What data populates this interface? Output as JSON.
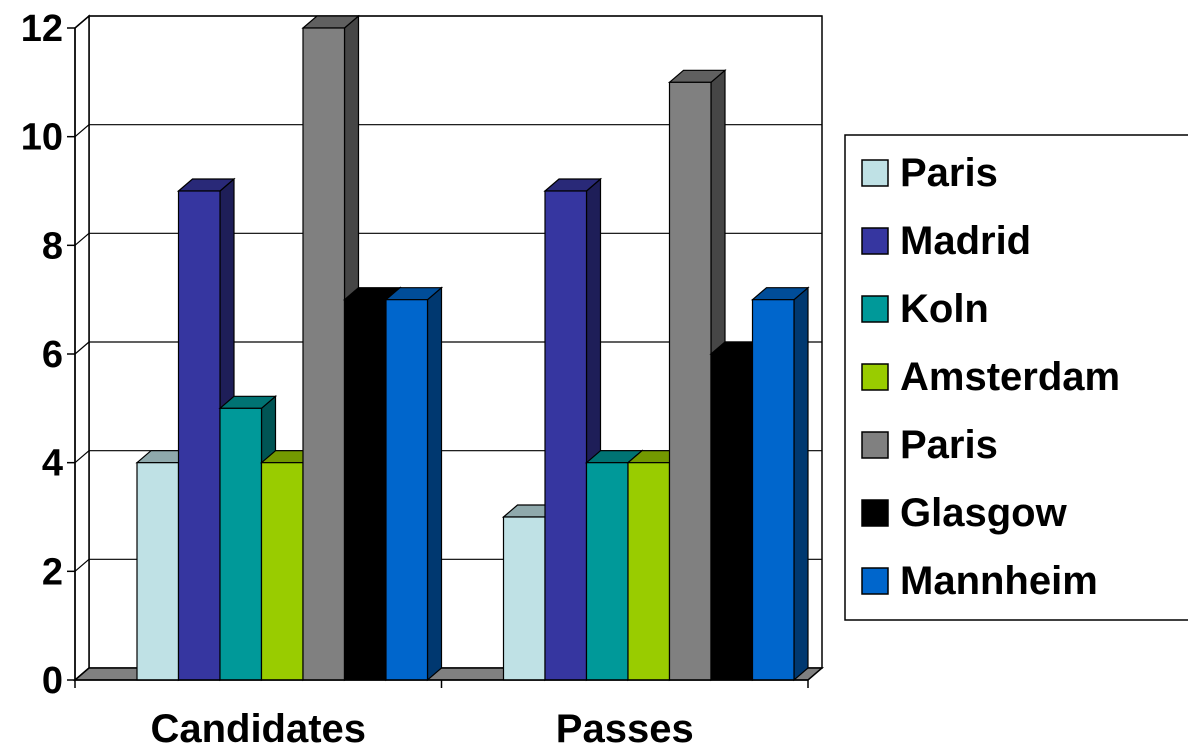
{
  "chart_data": {
    "type": "bar",
    "title": "",
    "xlabel": "",
    "ylabel": "",
    "categories": [
      "Candidates",
      "Passes"
    ],
    "ylim": [
      0,
      12
    ],
    "yticks": [
      0,
      2,
      4,
      6,
      8,
      10,
      12
    ],
    "grid": true,
    "legend": "right",
    "style": "3d-clustered-column",
    "series": [
      {
        "name": "Paris",
        "values": [
          4,
          3
        ],
        "color": "#BFE1E5"
      },
      {
        "name": "Madrid",
        "values": [
          9,
          9
        ],
        "color": "#3636A0"
      },
      {
        "name": "Koln",
        "values": [
          5,
          4
        ],
        "color": "#009999"
      },
      {
        "name": "Amsterdam",
        "values": [
          4,
          4
        ],
        "color": "#99CC00"
      },
      {
        "name": "Paris",
        "values": [
          12,
          11
        ],
        "color": "#808080"
      },
      {
        "name": "Glasgow",
        "values": [
          7,
          6
        ],
        "color": "#000000"
      },
      {
        "name": "Mannheim",
        "values": [
          7,
          7
        ],
        "color": "#0066CC"
      }
    ]
  }
}
